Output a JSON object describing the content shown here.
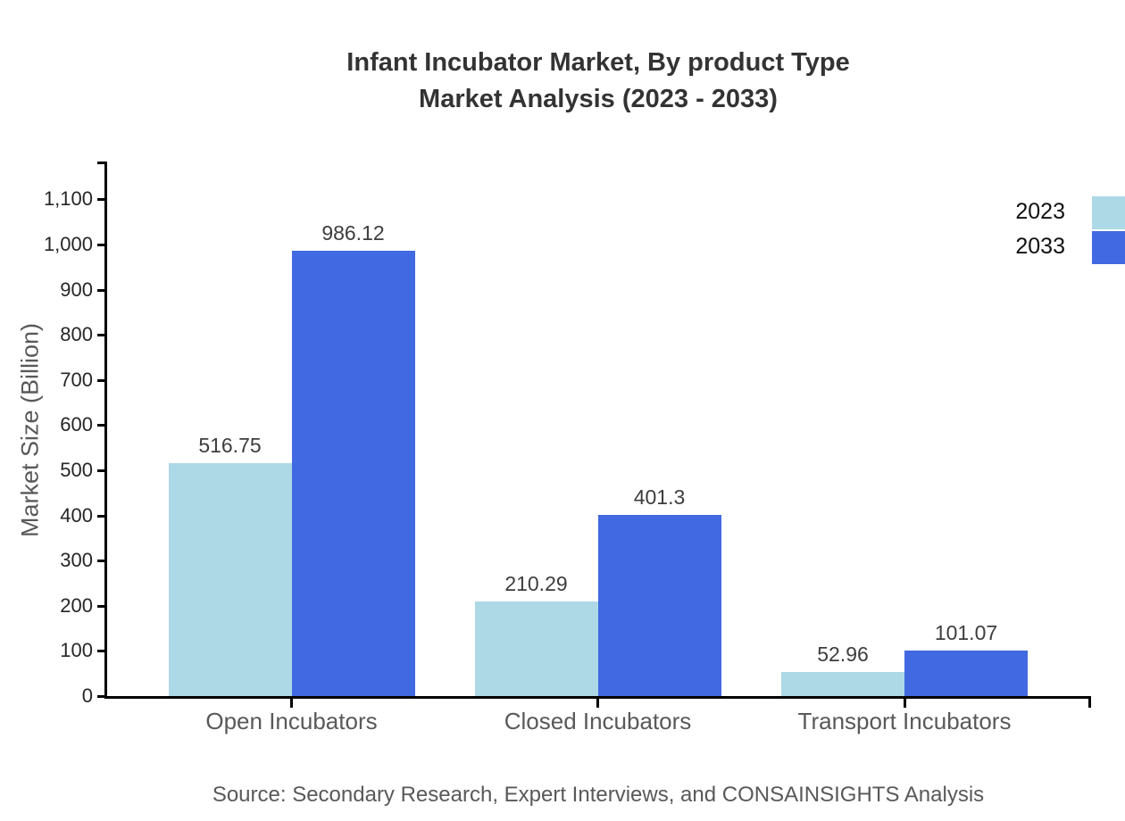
{
  "page": {
    "background": "#ffffff"
  },
  "chart_data": {
    "type": "bar",
    "title": "Infant Incubator Market, By product Type",
    "subtitle": "Market Analysis (2023 - 2033)",
    "ylabel": "Market Size (Billion)",
    "xlabel": "",
    "categories": [
      "Open Incubators",
      "Closed Incubators",
      "Transport Incubators"
    ],
    "series": [
      {
        "name": "2023",
        "color": "#add8e6",
        "values": [
          516.75,
          210.29,
          52.96
        ]
      },
      {
        "name": "2033",
        "color": "#4169e1",
        "values": [
          986.12,
          401.3,
          101.07
        ]
      }
    ],
    "yticks": [
      "0",
      "100",
      "200",
      "300",
      "400",
      "500",
      "600",
      "700",
      "800",
      "900",
      "1,000",
      "1,100"
    ],
    "ylim": [
      0,
      1180
    ],
    "grid": false,
    "legend_position": "top-right",
    "source": "Source: Secondary Research, Expert Interviews, and CONSAINSIGHTS Analysis",
    "colors": {
      "axis": "#000000",
      "title_text": "#333333",
      "tick_text": "#262626",
      "category_text": "#595959",
      "value_text": "#3d3d3d",
      "ylabel_text": "#595959",
      "source_text": "#595959",
      "legend_text": "#111111"
    }
  }
}
